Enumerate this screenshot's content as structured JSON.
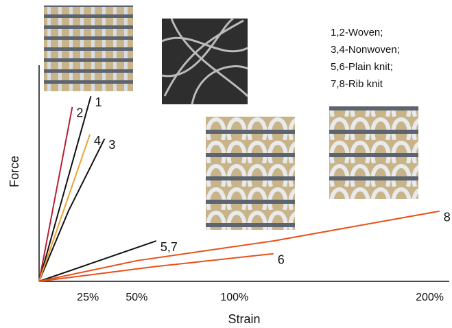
{
  "chart_data": {
    "type": "line",
    "xlabel": "Strain",
    "ylabel": "Force",
    "xlim": [
      0,
      210
    ],
    "ylim": [
      0,
      100
    ],
    "xticks": [
      {
        "value": 25,
        "label": "25%"
      },
      {
        "value": 50,
        "label": "50%"
      },
      {
        "value": 100,
        "label": "100%"
      },
      {
        "value": 200,
        "label": "200%"
      }
    ],
    "annotations": [
      "1,2-Woven;",
      "3,4-Nonwoven;",
      "5,6-Plain knit;",
      "7,8-Rib knit"
    ],
    "series": [
      {
        "name": "1",
        "color": "#111111",
        "x": [
          0,
          26.5
        ],
        "values": [
          0,
          87
        ]
      },
      {
        "name": "2",
        "color": "#b22234",
        "x": [
          0,
          17
        ],
        "values": [
          0,
          82
        ]
      },
      {
        "name": "3",
        "color": "#111111",
        "x": [
          0,
          15,
          33.5
        ],
        "values": [
          0,
          33,
          67
        ]
      },
      {
        "name": "4",
        "color": "#f0a030",
        "x": [
          0,
          26
        ],
        "values": [
          0,
          69
        ]
      },
      {
        "name": "5,7",
        "color": "#111111",
        "x": [
          0,
          60
        ],
        "values": [
          0,
          19
        ]
      },
      {
        "name": "6",
        "color": "#e8501a",
        "x": [
          0,
          60,
          120
        ],
        "values": [
          0,
          7,
          13
        ]
      },
      {
        "name": "8",
        "color": "#e8501a",
        "x": [
          0,
          50,
          120,
          205
        ],
        "values": [
          0,
          9.7,
          19,
          33
        ]
      }
    ]
  }
}
